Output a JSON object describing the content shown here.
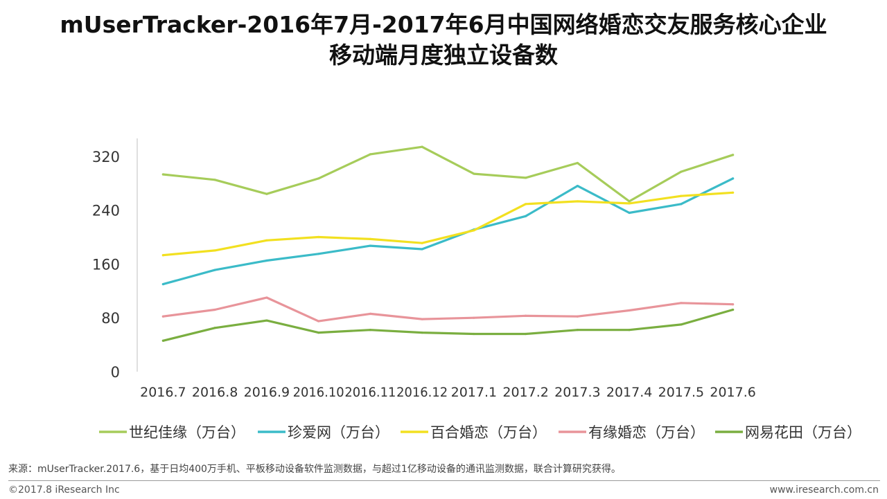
{
  "title": {
    "line1": "mUserTracker-2016年7月-2017年6月中国网络婚恋交友服务核心企业",
    "line2": "移动端月度独立设备数"
  },
  "chart_data": {
    "type": "line",
    "categories": [
      "2016.7",
      "2016.8",
      "2016.9",
      "2016.10",
      "2016.11",
      "2016.12",
      "2017.1",
      "2017.2",
      "2017.3",
      "2017.4",
      "2017.5",
      "2017.6"
    ],
    "ylim": [
      0,
      340
    ],
    "yticks": [
      0,
      80,
      160,
      240,
      320
    ],
    "grid": false,
    "legend_position": "bottom",
    "series": [
      {
        "name": "世纪佳缘（万台）",
        "color": "#a6cc5a",
        "values": [
          293,
          285,
          264,
          287,
          323,
          334,
          294,
          288,
          310,
          253,
          297,
          322
        ]
      },
      {
        "name": "珍爱网（万台）",
        "color": "#3bbbc8",
        "values": [
          130,
          151,
          165,
          175,
          187,
          182,
          211,
          231,
          276,
          236,
          249,
          287
        ]
      },
      {
        "name": "百合婚恋（万台）",
        "color": "#f2e020",
        "values": [
          173,
          180,
          195,
          200,
          197,
          191,
          210,
          249,
          253,
          250,
          261,
          266
        ]
      },
      {
        "name": "有缘婚恋（万台）",
        "color": "#e8949a",
        "values": [
          82,
          92,
          110,
          75,
          86,
          78,
          80,
          83,
          82,
          91,
          102,
          100
        ]
      },
      {
        "name": "网易花田（万台）",
        "color": "#7aae40",
        "values": [
          46,
          65,
          76,
          58,
          62,
          58,
          56,
          56,
          62,
          62,
          70,
          92
        ]
      }
    ]
  },
  "footer": {
    "source": "来源：mUserTracker.2017.6，基于日均400万手机、平板移动设备软件监测数据，与超过1亿移动设备的通讯监测数据，联合计算研究获得。",
    "copyright": "©2017.8 iResearch Inc",
    "website": "www.iresearch.com.cn"
  }
}
